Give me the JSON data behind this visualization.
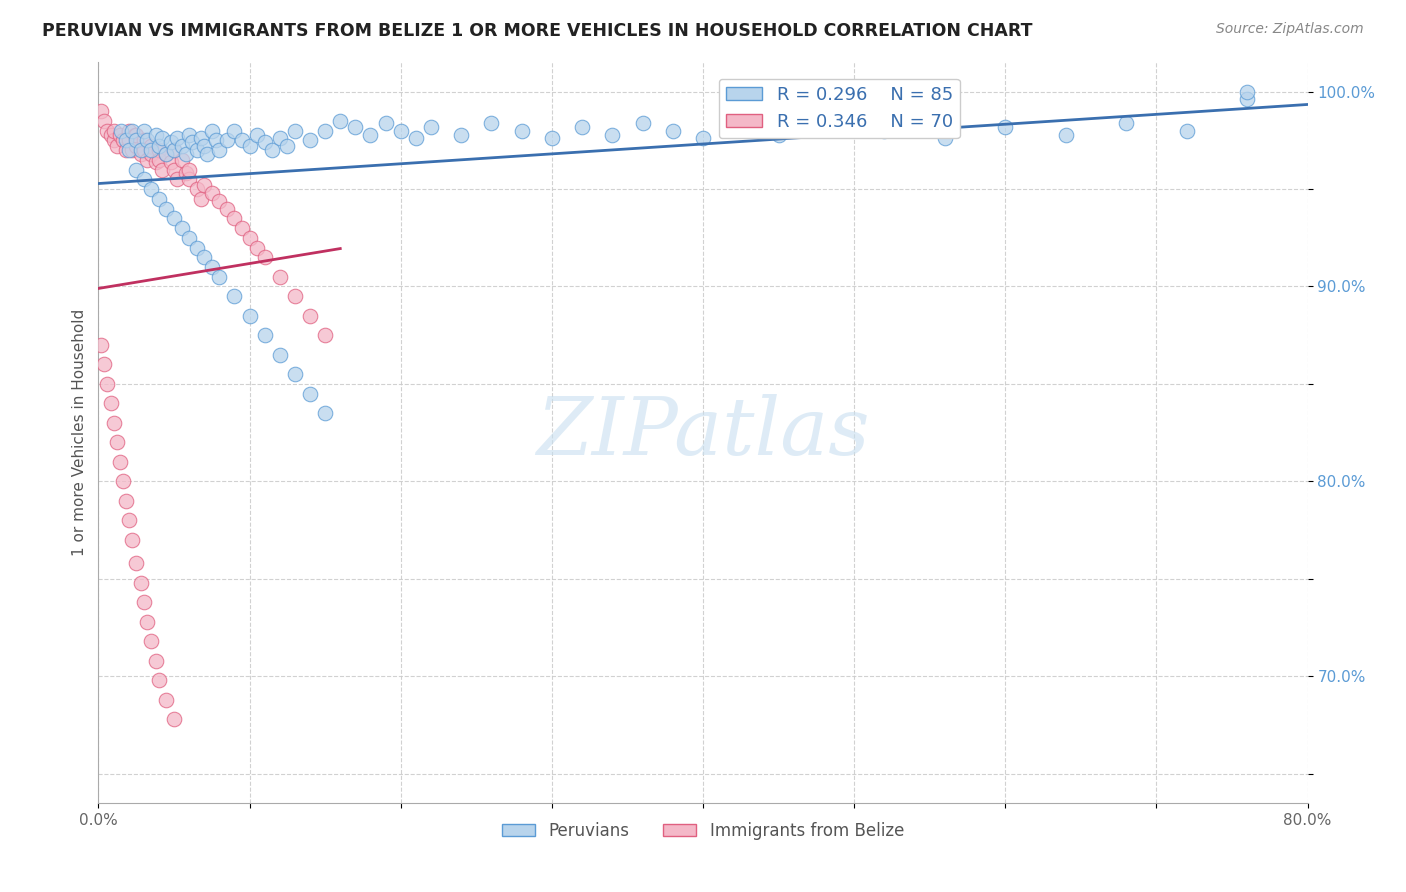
{
  "title": "PERUVIAN VS IMMIGRANTS FROM BELIZE 1 OR MORE VEHICLES IN HOUSEHOLD CORRELATION CHART",
  "source": "Source: ZipAtlas.com",
  "ylabel": "1 or more Vehicles in Household",
  "xlim": [
    0.0,
    0.8
  ],
  "ylim": [
    0.635,
    1.015
  ],
  "x_ticks": [
    0.0,
    0.1,
    0.2,
    0.3,
    0.4,
    0.5,
    0.6,
    0.7,
    0.8
  ],
  "x_tick_labels": [
    "0.0%",
    "",
    "",
    "",
    "",
    "",
    "",
    "",
    "80.0%"
  ],
  "y_tick_positions": [
    0.65,
    0.7,
    0.75,
    0.8,
    0.85,
    0.9,
    0.95,
    1.0
  ],
  "y_tick_labels_right": [
    "",
    "70.0%",
    "",
    "80.0%",
    "",
    "90.0%",
    "",
    "100.0%"
  ],
  "legend_R1": "R = 0.296",
  "legend_N1": "N = 85",
  "legend_R2": "R = 0.346",
  "legend_N2": "N = 70",
  "color_blue_fill": "#b8d4ec",
  "color_blue_edge": "#5b9bd5",
  "color_pink_fill": "#f4b8c8",
  "color_pink_edge": "#e06080",
  "color_line_blue": "#3a6faf",
  "color_line_pink": "#c03060",
  "watermark_color": "#c8dff0",
  "peruvian_x": [
    0.015,
    0.018,
    0.02,
    0.022,
    0.025,
    0.028,
    0.03,
    0.032,
    0.035,
    0.038,
    0.04,
    0.042,
    0.045,
    0.048,
    0.05,
    0.052,
    0.055,
    0.058,
    0.06,
    0.062,
    0.065,
    0.068,
    0.07,
    0.072,
    0.075,
    0.078,
    0.08,
    0.085,
    0.09,
    0.095,
    0.1,
    0.105,
    0.11,
    0.115,
    0.12,
    0.125,
    0.13,
    0.14,
    0.15,
    0.16,
    0.17,
    0.18,
    0.19,
    0.2,
    0.21,
    0.22,
    0.24,
    0.26,
    0.28,
    0.3,
    0.32,
    0.34,
    0.36,
    0.38,
    0.4,
    0.42,
    0.45,
    0.48,
    0.52,
    0.56,
    0.6,
    0.64,
    0.68,
    0.72,
    0.76,
    0.025,
    0.03,
    0.035,
    0.04,
    0.045,
    0.05,
    0.055,
    0.06,
    0.065,
    0.07,
    0.075,
    0.08,
    0.09,
    0.1,
    0.11,
    0.12,
    0.13,
    0.14,
    0.15,
    0.76
  ],
  "peruvian_y": [
    0.98,
    0.975,
    0.97,
    0.98,
    0.975,
    0.97,
    0.98,
    0.975,
    0.97,
    0.978,
    0.972,
    0.976,
    0.968,
    0.974,
    0.97,
    0.976,
    0.972,
    0.968,
    0.978,
    0.974,
    0.97,
    0.976,
    0.972,
    0.968,
    0.98,
    0.975,
    0.97,
    0.975,
    0.98,
    0.975,
    0.972,
    0.978,
    0.974,
    0.97,
    0.976,
    0.972,
    0.98,
    0.975,
    0.98,
    0.985,
    0.982,
    0.978,
    0.984,
    0.98,
    0.976,
    0.982,
    0.978,
    0.984,
    0.98,
    0.976,
    0.982,
    0.978,
    0.984,
    0.98,
    0.976,
    0.982,
    0.978,
    0.984,
    0.98,
    0.976,
    0.982,
    0.978,
    0.984,
    0.98,
    0.996,
    0.96,
    0.955,
    0.95,
    0.945,
    0.94,
    0.935,
    0.93,
    0.925,
    0.92,
    0.915,
    0.91,
    0.905,
    0.895,
    0.885,
    0.875,
    0.865,
    0.855,
    0.845,
    0.835,
    1.0
  ],
  "belize_x": [
    0.002,
    0.004,
    0.006,
    0.008,
    0.01,
    0.01,
    0.012,
    0.014,
    0.016,
    0.018,
    0.02,
    0.02,
    0.022,
    0.024,
    0.025,
    0.025,
    0.028,
    0.03,
    0.03,
    0.032,
    0.035,
    0.035,
    0.038,
    0.04,
    0.04,
    0.042,
    0.045,
    0.048,
    0.05,
    0.05,
    0.052,
    0.055,
    0.058,
    0.06,
    0.06,
    0.065,
    0.068,
    0.07,
    0.075,
    0.08,
    0.085,
    0.09,
    0.095,
    0.1,
    0.105,
    0.11,
    0.12,
    0.13,
    0.14,
    0.15,
    0.002,
    0.004,
    0.006,
    0.008,
    0.01,
    0.012,
    0.014,
    0.016,
    0.018,
    0.02,
    0.022,
    0.025,
    0.028,
    0.03,
    0.032,
    0.035,
    0.038,
    0.04,
    0.045,
    0.05
  ],
  "belize_y": [
    0.99,
    0.985,
    0.98,
    0.978,
    0.975,
    0.98,
    0.972,
    0.978,
    0.975,
    0.97,
    0.98,
    0.975,
    0.97,
    0.978,
    0.972,
    0.978,
    0.968,
    0.975,
    0.97,
    0.965,
    0.972,
    0.968,
    0.964,
    0.97,
    0.965,
    0.96,
    0.968,
    0.964,
    0.97,
    0.96,
    0.955,
    0.965,
    0.958,
    0.955,
    0.96,
    0.95,
    0.945,
    0.952,
    0.948,
    0.944,
    0.94,
    0.935,
    0.93,
    0.925,
    0.92,
    0.915,
    0.905,
    0.895,
    0.885,
    0.875,
    0.87,
    0.86,
    0.85,
    0.84,
    0.83,
    0.82,
    0.81,
    0.8,
    0.79,
    0.78,
    0.77,
    0.758,
    0.748,
    0.738,
    0.728,
    0.718,
    0.708,
    0.698,
    0.688,
    0.678
  ]
}
